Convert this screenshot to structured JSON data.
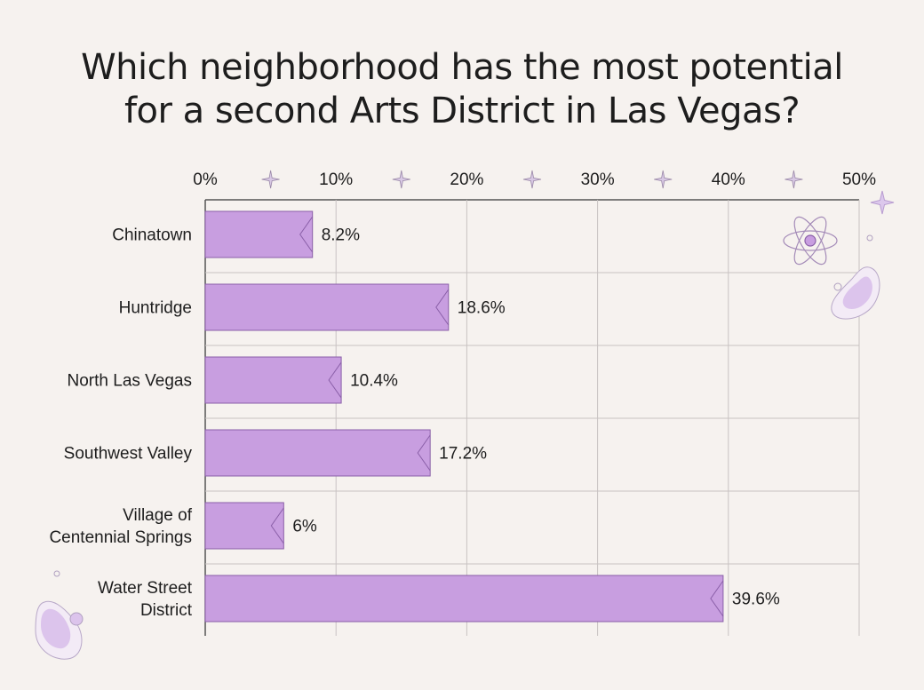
{
  "colors": {
    "background": "#f6f2ef",
    "bar_fill": "#c89ee0",
    "bar_stroke": "#8a5fa8",
    "grid": "#c8c2c2",
    "axis": "#555555",
    "decoration": "#b89cd0"
  },
  "chart_data": {
    "type": "bar",
    "orientation": "horizontal",
    "title": "Which neighborhood has the most potential for a second Arts District in Las Vegas?",
    "title_lines": [
      "Which neighborhood has the most potential",
      "for a second Arts District in Las Vegas?"
    ],
    "categories": [
      [
        "Chinatown"
      ],
      [
        "Huntridge"
      ],
      [
        "North Las Vegas"
      ],
      [
        "Southwest Valley"
      ],
      [
        "Village of",
        "Centennial Springs"
      ],
      [
        "Water Street",
        "District"
      ]
    ],
    "values": [
      8.2,
      18.6,
      10.4,
      17.2,
      6,
      39.6
    ],
    "value_labels": [
      "8.2%",
      "18.6%",
      "10.4%",
      "17.2%",
      "6%",
      "39.6%"
    ],
    "xlim": [
      0,
      50
    ],
    "ticks": [
      0,
      10,
      20,
      30,
      40,
      50
    ],
    "tick_labels": [
      "0%",
      "10%",
      "20%",
      "30%",
      "40%",
      "50%"
    ],
    "xaxis_position": "top",
    "grid": true,
    "legend": false
  },
  "decorations": {
    "tick_sparkle_icons": "sparkle-icon",
    "top_right": [
      "sparkle-icon",
      "atom-icon",
      "blob-icon",
      "bubble-icon"
    ],
    "bottom_left": [
      "blob-icon",
      "bubble-icon"
    ]
  }
}
